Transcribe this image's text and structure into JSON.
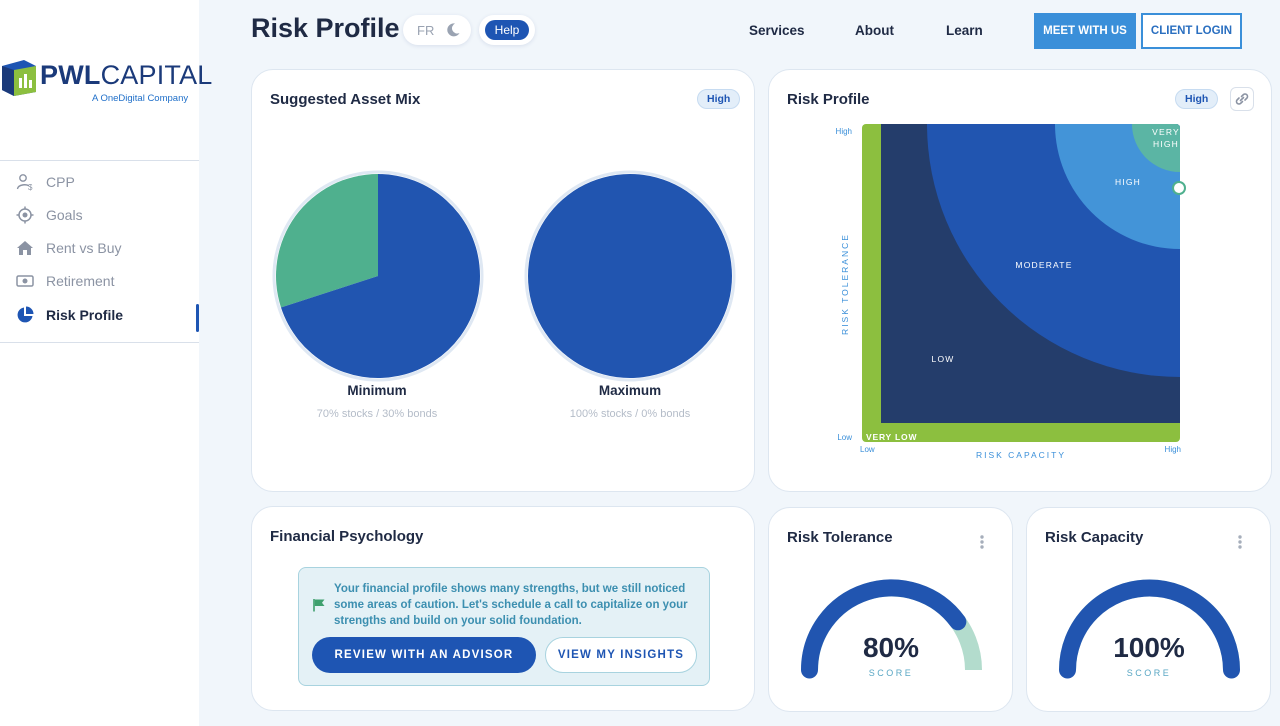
{
  "brand": {
    "logo_bold": "PWL",
    "logo_rest": "CAPITAL",
    "logo_sub": "A OneDigital Company"
  },
  "sidebar": {
    "items": [
      {
        "label": "CPP",
        "icon": "person-dollar-icon"
      },
      {
        "label": "Goals",
        "icon": "target-icon"
      },
      {
        "label": "Rent vs Buy",
        "icon": "home-icon"
      },
      {
        "label": "Retirement",
        "icon": "cash-icon"
      },
      {
        "label": "Risk Profile",
        "icon": "pie-icon",
        "active": true
      }
    ]
  },
  "header": {
    "title": "Risk Profile",
    "lang_toggle": "FR",
    "theme_icon": "moon-icon",
    "help_label": "Help",
    "nav": [
      "Services",
      "About",
      "Learn"
    ],
    "meet_label": "MEET WITH US",
    "login_label": "CLIENT LOGIN"
  },
  "asset_mix": {
    "title": "Suggested Asset Mix",
    "badge": "High",
    "charts": [
      {
        "label": "Minimum",
        "caption": "70% stocks / 30% bonds",
        "stocks": 70,
        "bonds": 30
      },
      {
        "label": "Maximum",
        "caption": "100% stocks / 0% bonds",
        "stocks": 100,
        "bonds": 0
      }
    ]
  },
  "risk_profile": {
    "title": "Risk Profile",
    "badge": "High",
    "link_icon": "link-icon",
    "zones": [
      "VERY LOW",
      "LOW",
      "MODERATE",
      "HIGH",
      "VERY",
      "HIGH"
    ],
    "y_axis": "RISK TOLERANCE",
    "x_axis": "RISK CAPACITY",
    "y_high": "High",
    "y_low": "Low",
    "x_low": "Low",
    "x_high": "High"
  },
  "psychology": {
    "title": "Financial Psychology",
    "message": "Your financial profile shows many strengths, but we still noticed some areas of caution. Let's schedule a call to capitalize on your strengths and build on your solid foundation.",
    "review_label": "REVIEW WITH AN ADVISOR",
    "insights_label": "VIEW MY INSIGHTS"
  },
  "tolerance": {
    "title": "Risk Tolerance",
    "value": "80%",
    "label": "SCORE",
    "fraction": 0.8
  },
  "capacity": {
    "title": "Risk Capacity",
    "value": "100%",
    "label": "SCORE",
    "fraction": 1.0
  },
  "colors": {
    "primary": "#1e55b3",
    "teal": "#4fb08e",
    "green": "#8cbf3f",
    "navy": "#243d6b",
    "light_blue": "#4394d8",
    "gauge_track": "#b3dccd"
  }
}
